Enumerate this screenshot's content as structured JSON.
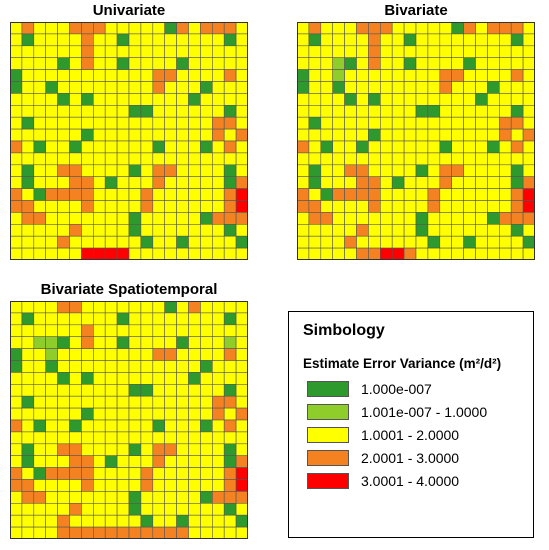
{
  "colors": {
    "c0": "#2e9a2e",
    "c1": "#8fcd2a",
    "c2": "#ffff00",
    "c3": "#f58220",
    "c4": "#ff0000",
    "gridline": "#555555"
  },
  "maps": [
    {
      "title": "Univariate",
      "cells": [
        "23222333222220323332",
        "20222232202222222202",
        "22222232222222222222",
        "22220232202222022222",
        "02222222222233222232",
        "02202222222232220222",
        "22220202222222202222",
        "22222222220022222202",
        "20222222222222222332",
        "22222202222222222323",
        "32022022222202220232",
        "22222222222222222222",
        "20223322220233222202",
        "20222332022232222203",
        "32033332222322222234",
        "33222232222322222234",
        "23322222220222220333",
        "22222322220222222202",
        "22223222222022022220",
        "22222244442222222222"
      ]
    },
    {
      "title": "Bivariate",
      "cells": [
        "23222333222220323332",
        "20222232202222222202",
        "22222232222222222222",
        "22210232202222022222",
        "02212222222233222232",
        "02202222222232220222",
        "22220202222222202222",
        "22222222220022222202",
        "20222222222222222332",
        "22222202222222222323",
        "32022022222202220232",
        "22222222222222222222",
        "20223322220233222202",
        "20222332022232222203",
        "32033332222322222234",
        "33222232222322222234",
        "23322222220222220333",
        "22222322220222222202",
        "22223222222022022220",
        "22222334432222222222"
      ]
    },
    {
      "title": "Bivariate  Spatiotemporal",
      "cells": [
        "22223322222220232222",
        "20222222202222222202",
        "22222232222222222222",
        "22110232202222022212",
        "02212222222233222232",
        "02202222222222220222",
        "22220202222222202222",
        "22222222220022222202",
        "20222222222222222332",
        "22222202222222222323",
        "32022022222202220232",
        "22222222222222222222",
        "20223322220233222202",
        "20222332022232222203",
        "32033332222322222234",
        "33222232222322222234",
        "23322222220222220333",
        "22222322220222222202",
        "22223222222022022220",
        "22223333333333322222"
      ]
    }
  ],
  "legend": {
    "title": "Simbology",
    "subtitle": "Estimate  Error Variance (m²/d²)",
    "items": [
      {
        "label": "1.000e-007",
        "color": "#2e9a2e"
      },
      {
        "label": "1.001e-007 - 1.0000",
        "color": "#8fcd2a"
      },
      {
        "label": "1.0001 - 2.0000",
        "color": "#ffff00"
      },
      {
        "label": "2.0001 - 3.0000",
        "color": "#f58220"
      },
      {
        "label": "3.0001 - 4.0000",
        "color": "#ff0000"
      }
    ]
  }
}
